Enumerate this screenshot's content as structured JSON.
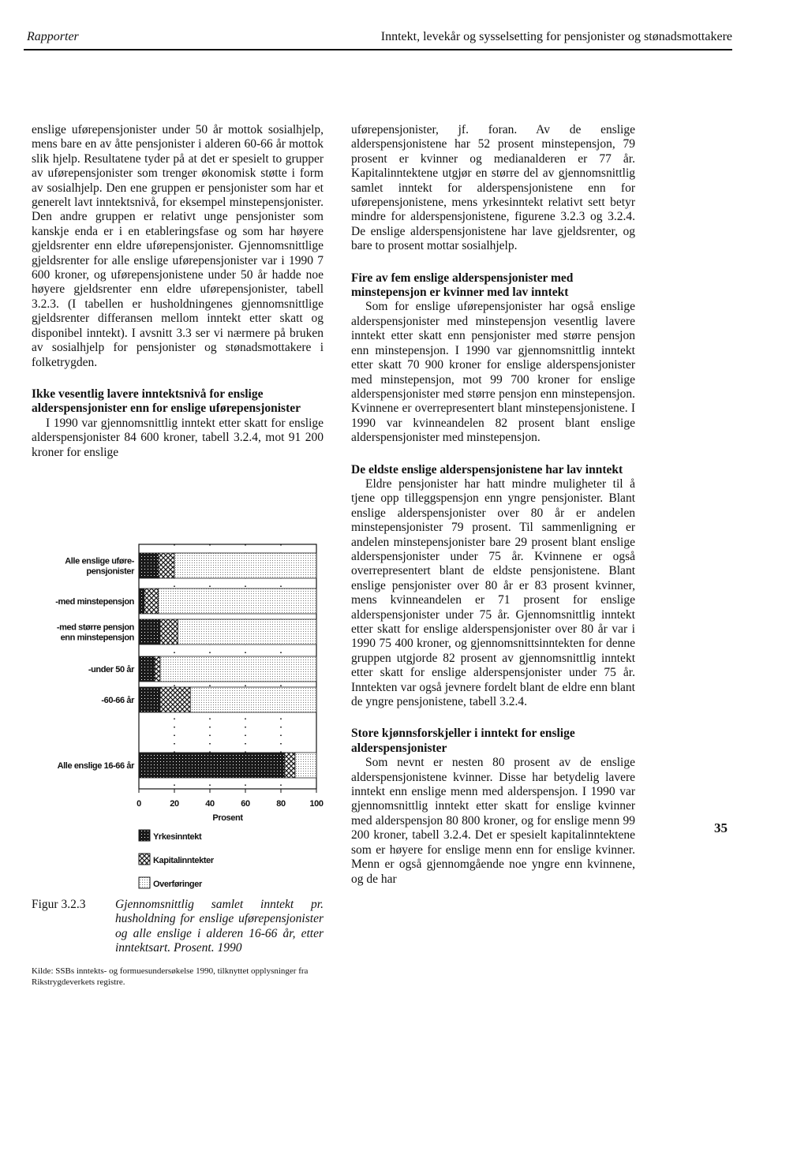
{
  "header": {
    "left": "Rapporter",
    "right": "Inntekt, levekår og sysselsetting for pensjonister og stønadsmottakere"
  },
  "left_column": {
    "paragraph": "enslige uførepensjonister under 50 år mottok sosialhjelp, mens bare en av åtte pensjonister i alderen 60-66 år mottok slik hjelp. Resultatene tyder på at det er spesielt to grupper av uførepensjonister som trenger økonomisk støtte i form av sosialhjelp. Den ene gruppen er pensjonister som har et generelt lavt inntektsnivå, for eksempel minstepensjonister. Den andre gruppen er relativt unge pensjonister som kanskje enda er i en etableringsfase og som har høyere gjeldsrenter enn eldre uførepensjonister. Gjennomsnittlige gjeldsrenter for alle enslige uførepensjonister var i 1990 7 600 kroner, og uførepensjonistene under 50 år hadde noe høyere gjeldsrenter enn eldre uførepensjonister, tabell 3.2.3. (I tabellen er husholdningenes gjennomsnittlige gjeldsrenter differansen mellom inntekt etter skatt og disponibel inntekt). I avsnitt 3.3 ser vi nærmere på bruken av sosialhjelp for pensjonister og stønadsmottakere i folketrygden.",
    "section": {
      "heading": "Ikke vesentlig lavere inntektsnivå for enslige alderspensjonister enn for enslige uførepensjonister",
      "paragraph": "I 1990 var gjennomsnittlig inntekt etter skatt for enslige alderspensjonister 84 600 kroner, tabell 3.2.4, mot 91 200 kroner for enslige"
    }
  },
  "chart_data": {
    "type": "bar",
    "orientation": "horizontal",
    "stacked": true,
    "categories": [
      "Alle enslige uføre-\npensjonister",
      "-med minstepensjon",
      "-med større pensjon\nenn minstepensjon",
      "-under 50 år",
      "-60-66 år",
      "Alle enslige 16-66 år"
    ],
    "series": [
      {
        "name": "Yrkesinntekt",
        "color": "#1a1a1a",
        "pattern": "dense",
        "values": [
          11,
          3,
          12,
          9,
          12,
          82
        ]
      },
      {
        "name": "Kapitalinntekter",
        "color": "#1a1a1a",
        "pattern": "check",
        "values": [
          9,
          8,
          10,
          3,
          17,
          6
        ]
      },
      {
        "name": "Overføringer",
        "color": "#1a1a1a",
        "pattern": "dots",
        "values": [
          80,
          89,
          78,
          88,
          71,
          12
        ]
      }
    ],
    "x_label": "Prosent",
    "xlim": [
      0,
      100
    ],
    "xticks": [
      0,
      20,
      40,
      60,
      80,
      100
    ],
    "grid": true
  },
  "figure_caption": {
    "label": "Figur 3.2.3",
    "text": "Gjennomsnittlig samlet inntekt pr. husholdning for enslige uførepensjonister og alle enslige i alderen 16-66 år, etter inntektsart. Prosent. 1990"
  },
  "source": "Kilde: SSBs inntekts- og formuesundersøkelse 1990, tilknyttet opplysninger fra Rikstrygdeverkets registre.",
  "right_column": {
    "paragraph": "uførepensjonister, jf. foran. Av de enslige alderspensjonistene har 52 prosent minstepensjon, 79 prosent er kvinner og medianalderen er 77 år. Kapitalinntektene utgjør en større del av gjennomsnittlig samlet inntekt for alderspensjonistene enn for uførepensjonistene, mens yrkesinntekt relativt sett betyr mindre for alderspensjonistene, figurene 3.2.3 og 3.2.4. De enslige alderspensjonistene har lave gjeldsrenter, og bare to prosent mottar sosialhjelp.",
    "sections": [
      {
        "heading": "Fire av fem enslige alderspensjonister med minstepensjon er kvinner med lav inntekt",
        "paragraph": "Som for enslige uførepensjonister har også enslige alderspensjonister med minstepensjon vesentlig lavere inntekt etter skatt enn pensjonister med større pensjon enn minstepensjon. I 1990 var gjennomsnittlig inntekt etter skatt 70 900 kroner for enslige alderspensjonister med minstepensjon, mot 99 700 kroner for enslige alderspensjonister med større pensjon enn minstepensjon. Kvinnene er overrepresentert blant minstepensjonistene. I 1990 var kvinneandelen 82 prosent blant enslige alderspensjonister med minstepensjon."
      },
      {
        "heading": "De eldste enslige alderspensjonistene har lav inntekt",
        "paragraph": "Eldre pensjonister har hatt mindre muligheter til å tjene opp tilleggspensjon enn yngre pensjonister. Blant enslige alderspensjonister over 80 år er andelen minstepensjonister 79 prosent. Til sammenligning er andelen minstepensjonister bare 29 prosent blant enslige alderspensjonister under 75 år. Kvinnene er også overrepresentert blant de eldste pensjonistene. Blant enslige pensjonister over 80 år er 83 prosent kvinner, mens kvinneandelen er 71 prosent for enslige alderspensjonister under 75 år. Gjennomsnittlig inntekt etter skatt for enslige alderspensjonister over 80 år var i 1990 75 400 kroner, og gjennomsnittsinntekten for denne gruppen utgjorde 82 prosent av gjennomsnittlig inntekt etter skatt for enslige alderspensjonister under 75 år. Inntekten var også jevnere fordelt blant de eldre enn blant de yngre pensjonistene, tabell 3.2.4."
      },
      {
        "heading": "Store kjønnsforskjeller i inntekt for enslige alderspensjonister",
        "paragraph": "Som nevnt er nesten 80 prosent av de enslige alderspensjonistene kvinner. Disse har betydelig lavere inntekt enn enslige menn med alderspensjon. I 1990 var gjennomsnittlig inntekt etter skatt for enslige kvinner med alderspensjon 80 800 kroner, og for enslige menn 99 200 kroner, tabell 3.2.4. Det er spesielt kapitalinntektene som er høyere for enslige menn enn for enslige kvinner. Menn er også gjennomgående noe yngre enn kvinnene, og de har"
      }
    ]
  },
  "page_number": "35"
}
